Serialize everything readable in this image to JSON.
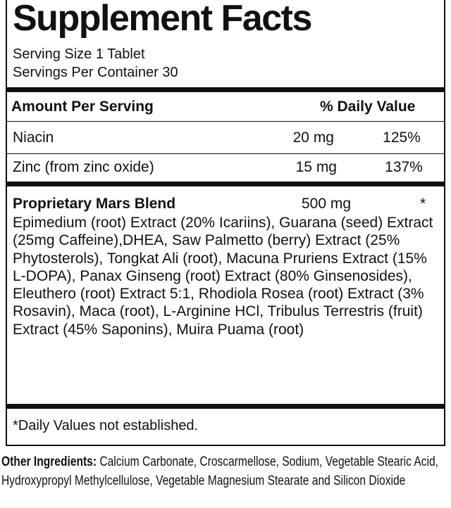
{
  "header": {
    "title": "Supplement Facts",
    "serving_size": "Serving Size 1 Tablet",
    "servings_per_container": "Servings Per Container 30"
  },
  "table": {
    "header": [
      "Amount Per Serving",
      "% Daily Value"
    ],
    "rows": [
      [
        "Niacin",
        "20 mg",
        "125%"
      ],
      [
        "Zinc (from zinc oxide)",
        "15 mg",
        "137%"
      ]
    ]
  },
  "blend": {
    "name": "Proprietary Mars Blend",
    "amount": "500 mg",
    "daily_value": "*",
    "ingredients": "Epimedium (root) Extract (20% Icariins), Guarana (seed) Extract (25mg Caffeine),DHEA, Saw Palmetto (berry) Extract (25% Phytosterols), Tongkat Ali (root), Macuna Pruriens Extract (15% L-DOPA), Panax Ginseng (root) Extract (80% Ginsenosides), Eleuthero (root) Extract 5:1, Rhodiola Rosea (root) Extract (3% Rosavin), Maca (root), L-Arginine HCl, Tribulus Terrestris (fruit) Extract (45% Saponins), Muira Puama (root)"
  },
  "footnote": "*Daily Values not established.",
  "other_ingredients": {
    "label": "Other Ingredients:",
    "text": "Calcium Carbonate, Croscarmellose, Sodium, Vegetable Stearic Acid, Hydroxypropyl Methylcellulose, Vegetable Magnesium Stearate and Silicon Dioxide"
  }
}
